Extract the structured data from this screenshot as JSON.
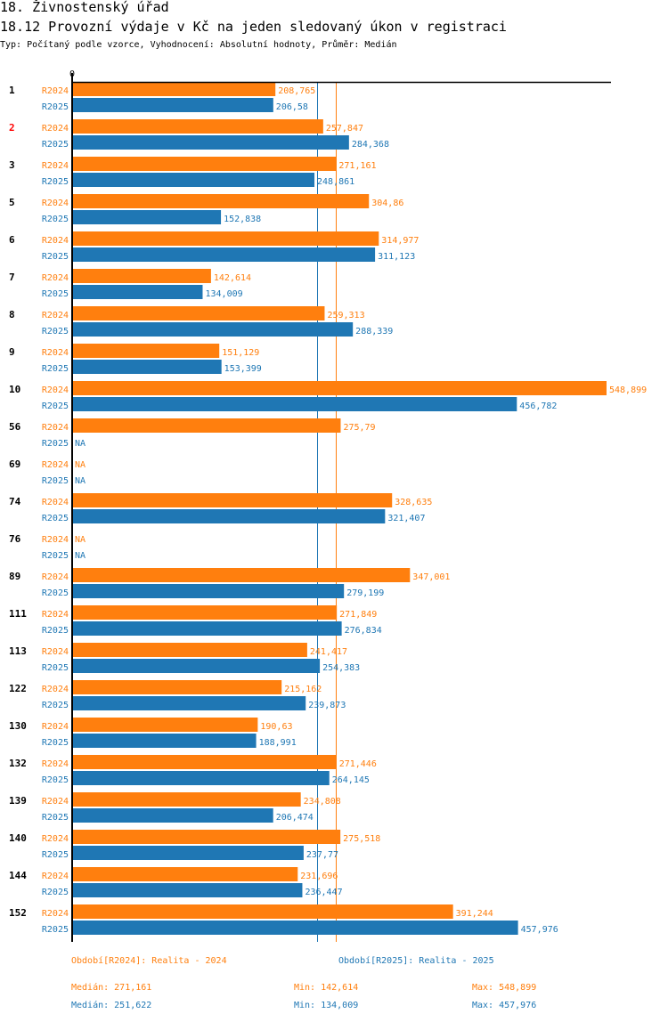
{
  "header": {
    "title": "18. Živnostenský úřad",
    "subtitle": "18.12 Provozní výdaje v Kč na jeden sledovaný úkon v registraci",
    "meta": "Typ: Počítaný podle vzorce, Vyhodnocení: Absolutní hodnoty, Průměr: Medián"
  },
  "colors": {
    "R2024": "#ff7f0e",
    "R2025": "#1f77b4",
    "highlight": "#ff0000",
    "axis": "#000000"
  },
  "chart_data": {
    "type": "bar",
    "orientation": "horizontal",
    "title": "18.12 Provozní výdaje v Kč na jeden sledovaný úkon v registraci",
    "xlabel": "",
    "ylabel": "",
    "xlim": [
      0,
      548.899
    ],
    "x_tick_labels": [
      "0"
    ],
    "grid": false,
    "legend_position": "bottom",
    "na_label": "NA",
    "highlighted_category": "2",
    "categories": [
      "1",
      "2",
      "3",
      "5",
      "6",
      "7",
      "8",
      "9",
      "10",
      "56",
      "69",
      "74",
      "76",
      "89",
      "111",
      "113",
      "122",
      "130",
      "132",
      "139",
      "140",
      "144",
      "152"
    ],
    "series": [
      {
        "name": "R2024",
        "color": "#ff7f0e",
        "values": [
          208.765,
          257.847,
          271.161,
          304.86,
          314.977,
          142.614,
          259.313,
          151.129,
          548.899,
          275.79,
          null,
          328.635,
          null,
          347.001,
          271.849,
          241.417,
          215.162,
          190.63,
          271.446,
          234.808,
          275.518,
          231.696,
          391.244
        ]
      },
      {
        "name": "R2025",
        "color": "#1f77b4",
        "values": [
          206.58,
          284.368,
          248.861,
          152.838,
          311.123,
          134.009,
          288.339,
          153.399,
          456.782,
          null,
          null,
          321.407,
          null,
          279.199,
          276.834,
          254.383,
          239.873,
          188.991,
          264.145,
          206.474,
          237.77,
          236.447,
          457.976
        ]
      }
    ],
    "reference_lines": [
      {
        "series": "R2024",
        "type": "median",
        "value": 271.161
      },
      {
        "series": "R2025",
        "type": "median",
        "value": 251.622
      }
    ]
  },
  "legend": {
    "r2024": "Období[R2024]: Realita - 2024",
    "r2025": "Období[R2025]: Realita - 2025"
  },
  "stats": {
    "r2024": {
      "median": "Medián: 271,161",
      "min": "Min: 142,614",
      "max": "Max: 548,899"
    },
    "r2025": {
      "median": "Medián: 251,622",
      "min": "Min: 134,009",
      "max": "Max: 457,976"
    }
  }
}
